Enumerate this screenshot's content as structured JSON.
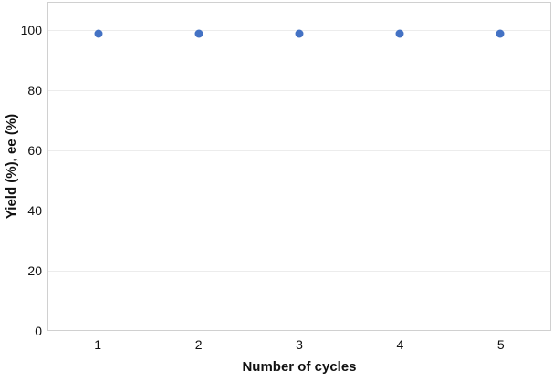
{
  "chart_data": {
    "type": "scatter",
    "x": [
      1,
      2,
      3,
      4,
      5
    ],
    "xticks": [
      "1",
      "2",
      "3",
      "4",
      "5"
    ],
    "yticks": [
      0,
      20,
      40,
      60,
      80,
      100
    ],
    "series": [
      {
        "name": "Yield (%), ee (%)",
        "values": [
          99,
          99,
          99,
          99,
          99
        ]
      }
    ],
    "title": "",
    "xlabel": "Number of cycles",
    "ylabel": "Yield (%), ee (%)",
    "ylim": [
      0,
      110
    ],
    "x_axis_type": "category",
    "grid": "horizontal",
    "legend": "none",
    "marker": "circle"
  },
  "colors": {
    "point": "#4472C4",
    "gridline": "#ececec",
    "frame": "#d0d0d0",
    "text": "#111111",
    "background": "#ffffff"
  }
}
